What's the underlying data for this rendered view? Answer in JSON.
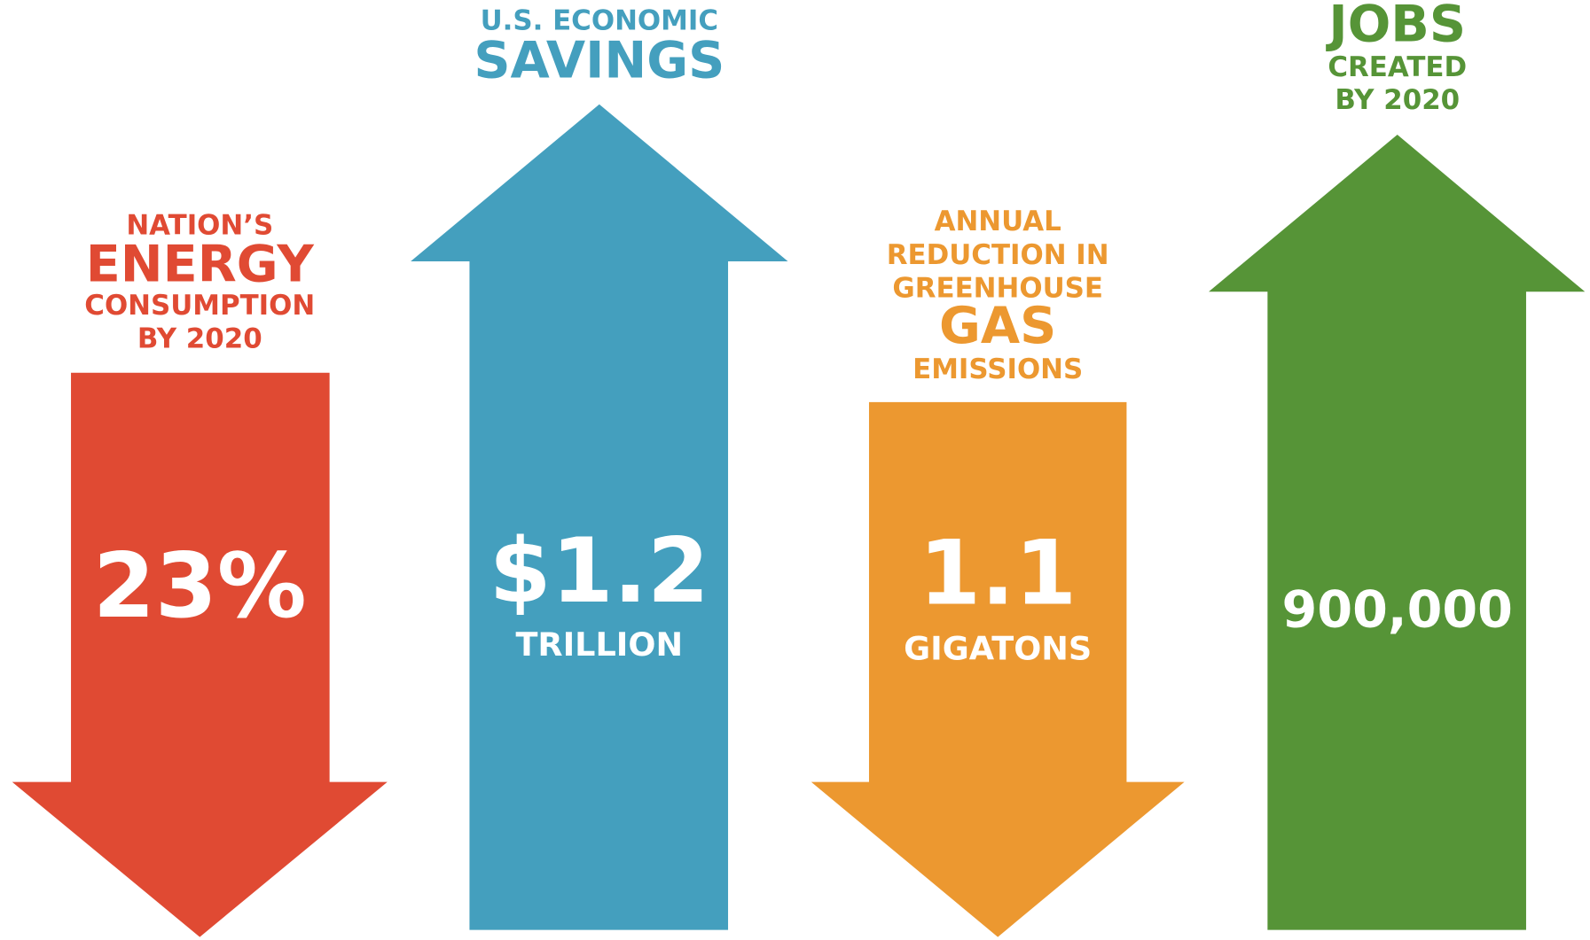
{
  "items": [
    {
      "heading": [
        "NATION’S",
        "ENERGY",
        "CONSUMPTION",
        "BY 2020"
      ],
      "value": "23%",
      "direction": "down",
      "color": "#e04a33"
    },
    {
      "heading": [
        "U.S. ECONOMIC",
        "SAVINGS"
      ],
      "value": "$1.2",
      "unit": "TRILLION",
      "direction": "up",
      "color": "#449fbe"
    },
    {
      "heading": [
        "ANNUAL",
        "REDUCTION IN",
        "GREENHOUSE",
        "GAS",
        "EMISSIONS"
      ],
      "value": "1.1",
      "unit": "GIGATONS",
      "direction": "down",
      "color": "#ec9830"
    },
    {
      "heading": [
        "JOBS",
        "CREATED",
        "BY 2020"
      ],
      "value": "900,000",
      "direction": "up",
      "color": "#569437"
    }
  ]
}
